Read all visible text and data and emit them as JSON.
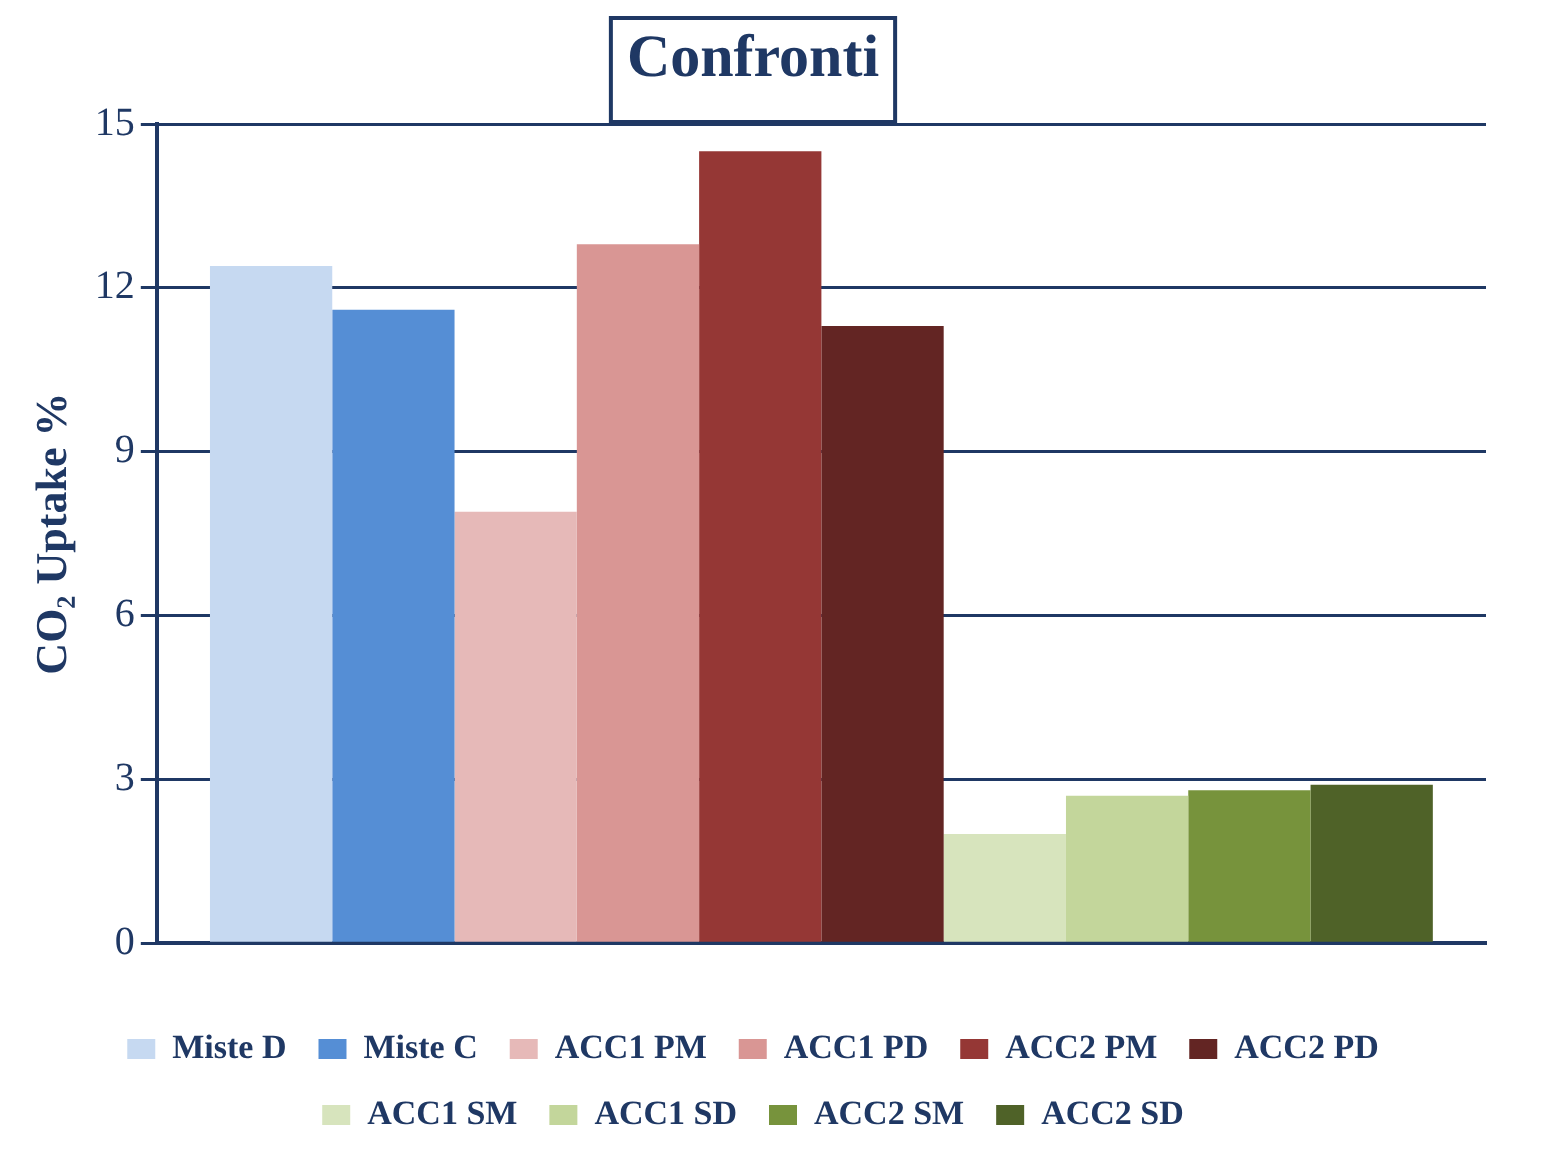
{
  "chart_data": {
    "type": "bar",
    "title": "Confronti",
    "ylabel": "CO₂ Uptake %",
    "categories": [
      null
    ],
    "series": [
      {
        "name": "Miste D",
        "color": "#c6d9f1",
        "values": [
          12.4
        ]
      },
      {
        "name": "Miste C",
        "color": "#558ed5",
        "values": [
          11.6
        ]
      },
      {
        "name": "ACC1 PM",
        "color": "#e6b9b8",
        "values": [
          7.9
        ]
      },
      {
        "name": "ACC1 PD",
        "color": "#d99694",
        "values": [
          12.8
        ]
      },
      {
        "name": "ACC2 PM",
        "color": "#953735",
        "values": [
          14.5
        ]
      },
      {
        "name": "ACC2 PD",
        "color": "#632523",
        "values": [
          11.3
        ]
      },
      {
        "name": "ACC1 SM",
        "color": "#d7e4bd",
        "values": [
          2.0
        ]
      },
      {
        "name": "ACC1 SD",
        "color": "#c3d69b",
        "values": [
          2.7
        ]
      },
      {
        "name": "ACC2 SM",
        "color": "#77933c",
        "values": [
          2.8
        ]
      },
      {
        "name": "ACC2 SD",
        "color": "#4f6228",
        "values": [
          2.9
        ]
      }
    ],
    "ylim": [
      0,
      15
    ],
    "yticks": [
      0,
      3,
      6,
      9,
      12,
      15
    ],
    "grid": "y",
    "legend": "bottom"
  }
}
